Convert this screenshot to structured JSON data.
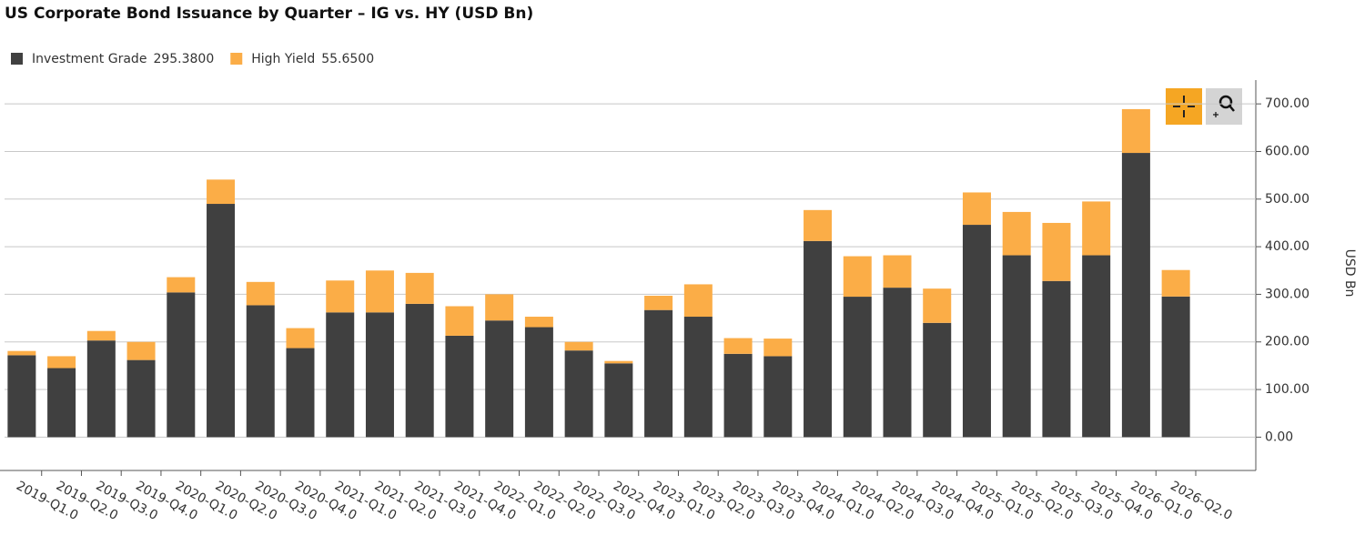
{
  "chart_data": {
    "type": "stacked_bar",
    "title": "US Corporate Bond Issuance by Quarter – IG vs. HY (USD Bn)",
    "y_label": "USD Bn",
    "categories": [
      "2019-Q1.0",
      "2019-Q2.0",
      "2019-Q3.0",
      "2019-Q4.0",
      "2020-Q1.0",
      "2020-Q2.0",
      "2020-Q3.0",
      "2020-Q4.0",
      "2021-Q1.0",
      "2021-Q2.0",
      "2021-Q3.0",
      "2021-Q4.0",
      "2022-Q1.0",
      "2022-Q2.0",
      "2022-Q3.0",
      "2022-Q4.0",
      "2023-Q1.0",
      "2023-Q2.0",
      "2023-Q3.0",
      "2023-Q4.0",
      "2024-Q1.0",
      "2024-Q2.0",
      "2024-Q3.0",
      "2024-Q4.0",
      "2025-Q1.0",
      "2025-Q2.0",
      "2025-Q3.0",
      "2025-Q4.0",
      "2026-Q1.0",
      "2026-Q2.0"
    ],
    "series": [
      {
        "name": "Investment Grade",
        "legend_value": "295.3800",
        "color": "#404040",
        "values": [
          172,
          145,
          203,
          162,
          304,
          490,
          277,
          187,
          262,
          262,
          280,
          213,
          245,
          231,
          182,
          155,
          267,
          253,
          175,
          170,
          412,
          295,
          314,
          240,
          446,
          382,
          328,
          382,
          597,
          295.38
        ]
      },
      {
        "name": "High Yield",
        "legend_value": "55.6500",
        "color": "#fbad47",
        "values": [
          9,
          25,
          20,
          38,
          32,
          51,
          49,
          42,
          67,
          88,
          65,
          62,
          55,
          22,
          18,
          5,
          30,
          68,
          33,
          37,
          65,
          85,
          68,
          72,
          68,
          91,
          122,
          113,
          92,
          55.65
        ]
      }
    ],
    "ylim": [
      -70,
      750
    ],
    "yticks": [
      {
        "value": 0,
        "label": "0.00"
      },
      {
        "value": 100,
        "label": "100.00"
      },
      {
        "value": 200,
        "label": "200.00"
      },
      {
        "value": 300,
        "label": "300.00"
      },
      {
        "value": 400,
        "label": "400.00"
      },
      {
        "value": 500,
        "label": "500.00"
      },
      {
        "value": 600,
        "label": "600.00"
      },
      {
        "value": 700,
        "label": "700.00"
      }
    ],
    "grid": true
  }
}
